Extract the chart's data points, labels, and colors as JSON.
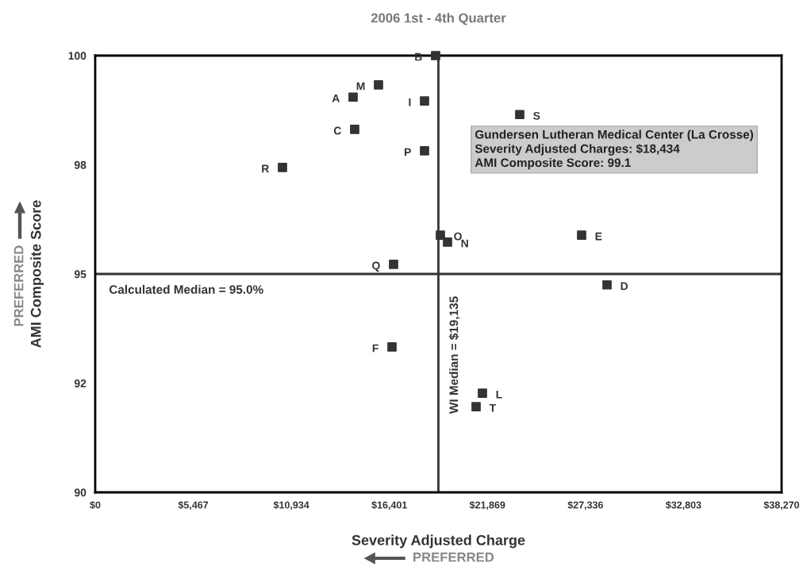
{
  "chart_data": {
    "type": "scatter",
    "title": "2006 1st - 4th Quarter",
    "xlabel": "Severity Adjusted Charge",
    "ylabel": "AMI Composite Score",
    "x": [
      18980,
      15795,
      14379,
      18361,
      14467,
      23670,
      21767,
      18361,
      10441,
      19246,
      19644,
      27121,
      16635,
      28537,
      16547,
      21591,
      21237
    ],
    "series": [
      {
        "color": "#333333",
        "values": [
          100,
          99.33,
          99.05,
          98.96,
          98.31,
          98.65,
          null,
          97.82,
          97.44,
          95.89,
          95.73,
          95.89,
          95.22,
          94.75,
          93.33,
          92.27,
          91.96
        ]
      }
    ],
    "marker": "square",
    "xlim": [
      0,
      38270
    ],
    "ylim": [
      90,
      100
    ],
    "xticks": [
      {
        "value": 0,
        "label": "$0"
      },
      {
        "value": 5467,
        "label": "$5,467"
      },
      {
        "value": 10934,
        "label": "$10,934"
      },
      {
        "value": 16401,
        "label": "$16,401"
      },
      {
        "value": 21869,
        "label": "$21,869"
      },
      {
        "value": 27336,
        "label": "$27,336"
      },
      {
        "value": 32803,
        "label": "$32,803"
      },
      {
        "value": 38270,
        "label": "$38,270"
      }
    ],
    "yticks": [
      90,
      {
        "value": 92.5,
        "label": "92"
      },
      95,
      {
        "value": 97.5,
        "label": "98"
      },
      100
    ],
    "ref_lines": [
      {
        "axis": "y",
        "value": 95,
        "label": "Calculated Median = 95.0%",
        "color": "#333333"
      },
      {
        "axis": "x",
        "value": 19135,
        "label": "WI Median = $19,135",
        "color": "#333333"
      }
    ],
    "annotations": [
      {
        "text": "B",
        "x": 18980,
        "y": 100
      },
      {
        "text": "M",
        "x": 15795,
        "y": 99.33
      },
      {
        "text": "A",
        "x": 14379,
        "y": 99.05
      },
      {
        "text": "I",
        "x": 18361,
        "y": 98.96
      },
      {
        "text": "C",
        "x": 14467,
        "y": 98.31
      },
      {
        "text": "S",
        "x": 23670,
        "y": 98.65
      },
      {
        "text": "P",
        "x": 18361,
        "y": 97.82
      },
      {
        "text": "R",
        "x": 10441,
        "y": 97.44
      },
      {
        "text": "O",
        "x": 19246,
        "y": 95.89
      },
      {
        "text": "N",
        "x": 19644,
        "y": 95.73
      },
      {
        "text": "E",
        "x": 27121,
        "y": 95.89
      },
      {
        "text": "Q",
        "x": 16635,
        "y": 95.22
      },
      {
        "text": "D",
        "x": 28537,
        "y": 94.75
      },
      {
        "text": "F",
        "x": 16547,
        "y": 93.33
      },
      {
        "text": "L",
        "x": 21591,
        "y": 92.27
      },
      {
        "text": "T",
        "x": 21237,
        "y": 91.96
      },
      "Gundersen Lutheran Medical Center (La Crosse)\nSeverity Adjusted Charges: $18,434\nAMI Composite Score: 99.1",
      "PREFERRED",
      "PREFERRED"
    ]
  }
}
